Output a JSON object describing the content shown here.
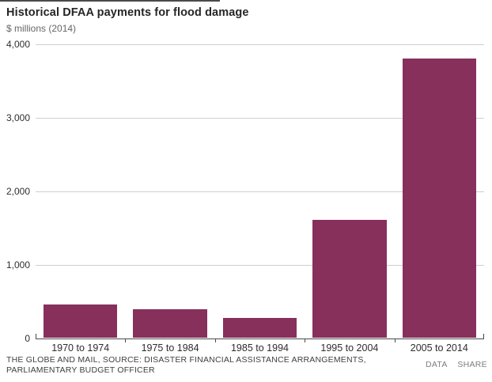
{
  "chart": {
    "title": "Historical DFAA payments for flood damage",
    "subtitle": "$ millions (2014)"
  },
  "chart_data": {
    "type": "bar",
    "categories": [
      "1970 to 1974",
      "1975 to 1984",
      "1985 to 1994",
      "1995 to 2004",
      "2005 to 2014"
    ],
    "values": [
      450,
      390,
      270,
      1600,
      3800
    ],
    "title": "Historical DFAA payments for flood damage",
    "subtitle": "$ millions (2014)",
    "xlabel": "",
    "ylabel": "$ millions (2014)",
    "ylim": [
      0,
      4000
    ],
    "yticks": [
      0,
      1000,
      2000,
      3000,
      4000
    ],
    "ytick_labels": [
      "0",
      "1,000",
      "2,000",
      "3,000",
      "4,000"
    ],
    "grid": true,
    "legend": "none",
    "bar_color": "#87305C"
  },
  "footer": {
    "source_line1": "THE GLOBE AND MAIL, SOURCE: DISASTER FINANCIAL ASSISTANCE ARRANGEMENTS,",
    "source_line2": "PARLIAMENTARY BUDGET OFFICER",
    "links": [
      {
        "label": "DATA"
      },
      {
        "label": "SHARE"
      }
    ]
  },
  "colors": {
    "bar": "#87305C",
    "gridline": "#cfcfcf",
    "axis": "#4a4a4a",
    "title": "#262626",
    "subtitle": "#676767",
    "source": "#3f3f3f",
    "link": "#7d7d7d"
  }
}
